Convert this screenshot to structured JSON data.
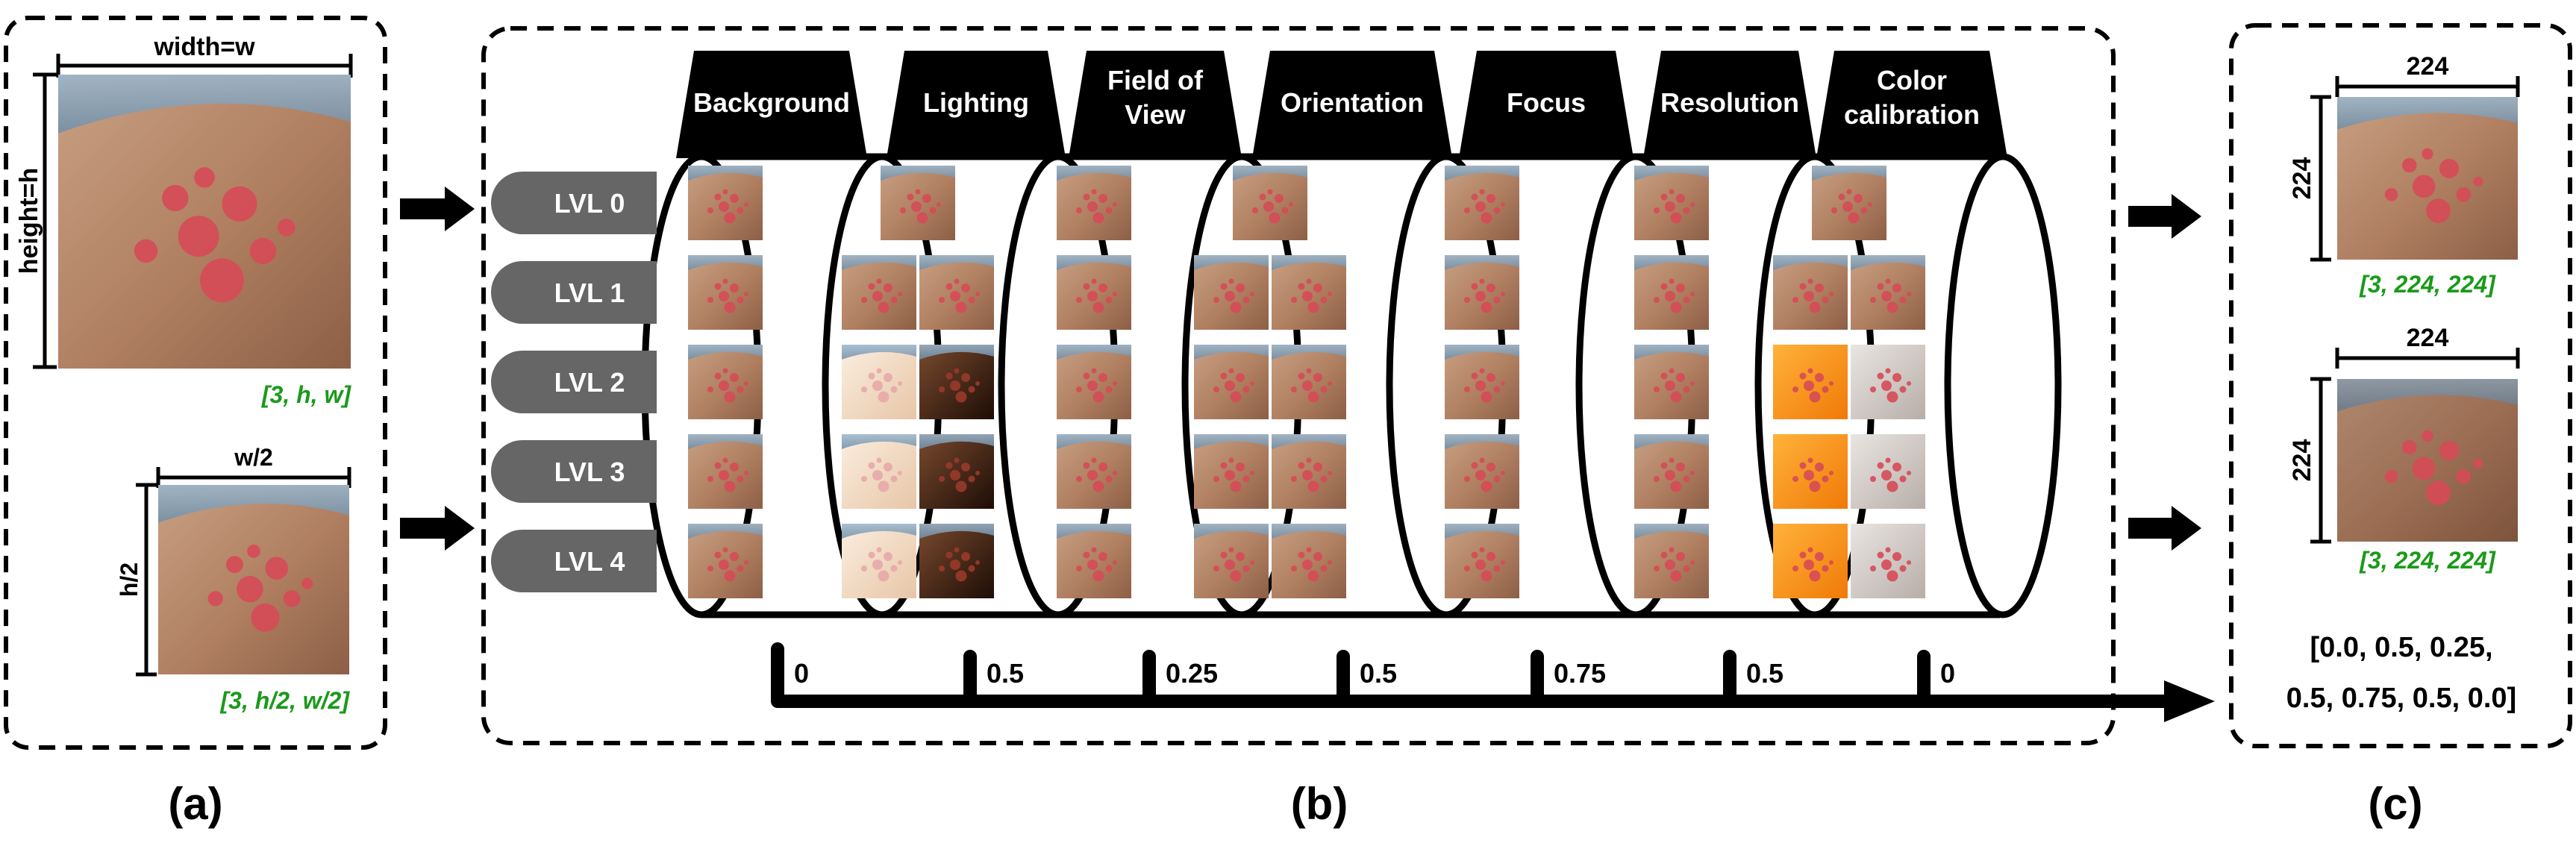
{
  "panel_a": {
    "caption": "(a)",
    "top_image": {
      "width_label": "width=w",
      "height_label": "height=h",
      "shape": "[3, h, w]"
    },
    "bottom_image": {
      "width_label": "w/2",
      "height_label": "h/2",
      "shape": "[3, h/2, w/2]"
    }
  },
  "panel_b": {
    "caption": "(b)",
    "categories": [
      "Background",
      "Lighting",
      "Field of View",
      "Orientation",
      "Focus",
      "Resolution",
      "Color calibration"
    ],
    "levels": [
      "LVL 0",
      "LVL 1",
      "LVL 2",
      "LVL 3",
      "LVL 4"
    ],
    "values": [
      "0",
      "0.5",
      "0.25",
      "0.5",
      "0.75",
      "0.5",
      "0"
    ]
  },
  "panel_c": {
    "caption": "(c)",
    "top": {
      "size_w": "224",
      "size_h": "224",
      "shape": "[3, 224, 224]"
    },
    "bottom": {
      "size_w": "224",
      "size_h": "224",
      "shape": "[3, 224, 224]"
    },
    "vector_line1": "[0.0, 0.5, 0.25,",
    "vector_line2": "0.5, 0.75, 0.5, 0.0]"
  },
  "colors": {
    "skin_base": "#b98a6c",
    "skin_dark": "#8d6049",
    "lesion": "#d84b56",
    "lvl_pill": "#666666",
    "label_green": "#1a9a1a",
    "sky": "#7fa6c4"
  }
}
